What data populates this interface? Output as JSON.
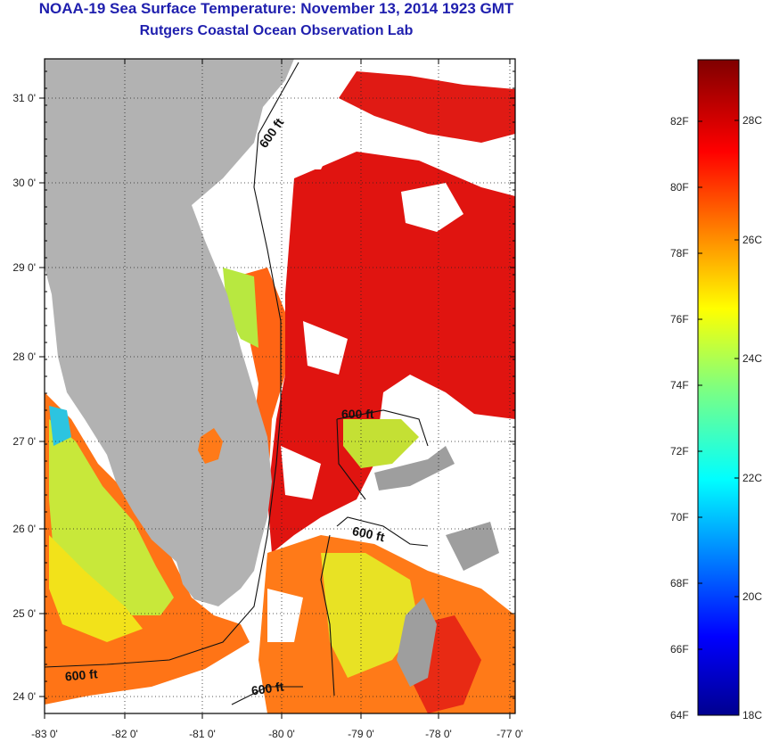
{
  "title": {
    "line1": "NOAA-19 Sea Surface Temperature:  November 13, 2014 1923 GMT",
    "line2": "Rutgers Coastal Ocean Observation Lab"
  },
  "map": {
    "lat_labels": [
      "31 0'",
      "30 0'",
      "29 0'",
      "28 0'",
      "27 0'",
      "26 0'",
      "25 0'",
      "24 0'"
    ],
    "lon_labels": [
      "-83 0'",
      "-82 0'",
      "-81 0'",
      "-80 0'",
      "-79 0'",
      "-78 0'",
      "-77 0'"
    ],
    "contour_label": "600 ft",
    "colors": {
      "land": "#b2b2b2",
      "warm": "#e01a10",
      "mid": "#ff6a10",
      "cool": "#d4ee20",
      "cold": "#20c0e0"
    }
  },
  "colorbar": {
    "fahrenheit": [
      "82F",
      "80F",
      "78F",
      "76F",
      "74F",
      "72F",
      "70F",
      "68F",
      "66F",
      "64F"
    ],
    "celsius": [
      "28C",
      "26C",
      "24C",
      "22C",
      "20C",
      "18C"
    ]
  }
}
